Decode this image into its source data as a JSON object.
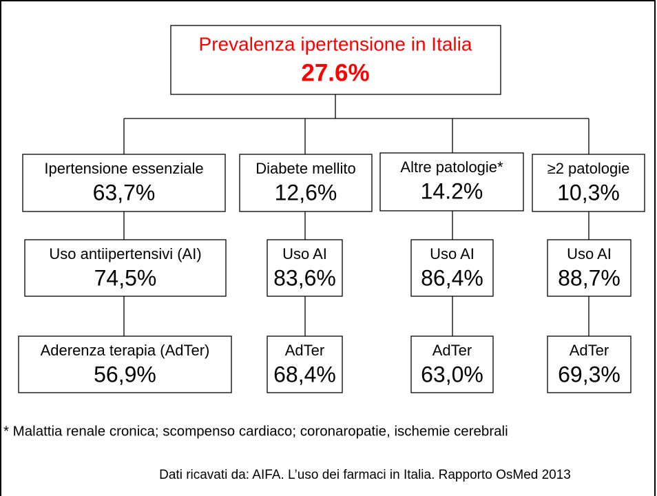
{
  "header": {
    "title": "Prevalenza ipertensione in Italia",
    "value": "27.6%"
  },
  "columns": [
    {
      "boxes": [
        {
          "label": "Ipertensione essenziale",
          "value": "63,7%"
        },
        {
          "label": "Uso antiipertensivi (AI)",
          "value": "74,5%"
        },
        {
          "label": "Aderenza terapia (AdTer)",
          "value": "56,9%"
        }
      ]
    },
    {
      "boxes": [
        {
          "label": "Diabete mellito",
          "value": "12,6%"
        },
        {
          "label": "Uso AI",
          "value": "83,6%"
        },
        {
          "label": "AdTer",
          "value": "68,4%"
        }
      ]
    },
    {
      "boxes": [
        {
          "label": "Altre patologie*",
          "value": "14.2%"
        },
        {
          "label": "Uso AI",
          "value": "86,4%"
        },
        {
          "label": "AdTer",
          "value": "63,0%"
        }
      ]
    },
    {
      "boxes": [
        {
          "label": "≥2 patologie",
          "value": "10,3%"
        },
        {
          "label": "Uso AI",
          "value": "88,7%"
        },
        {
          "label": "AdTer",
          "value": "69,3%"
        }
      ]
    }
  ],
  "footnote": "* Malattia renale cronica; scompenso cardiaco; coronaropatie, ischemie cerebrali",
  "source": "Dati ricavati da: AIFA. L’uso dei farmaci in Italia. Rapporto OsMed 2013"
}
